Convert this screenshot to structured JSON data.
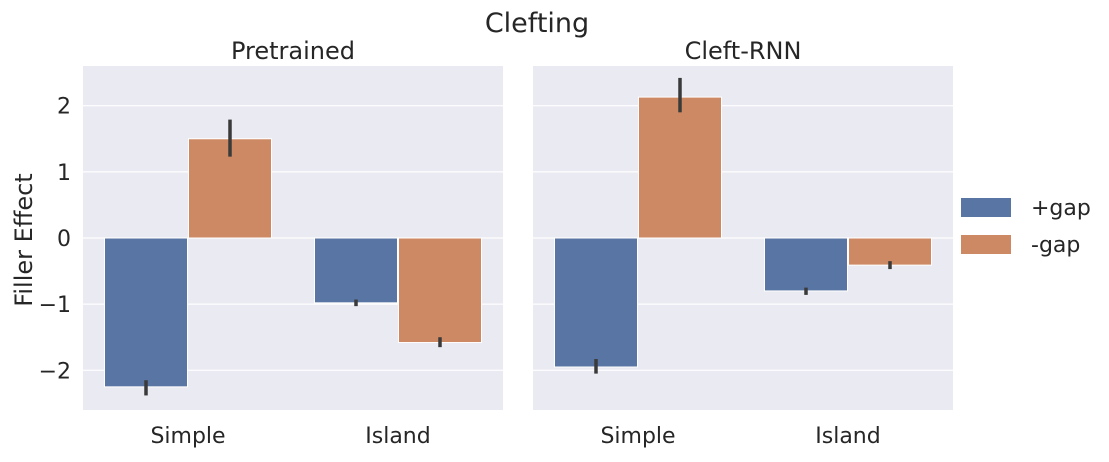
{
  "figure": {
    "suptitle": "Clefting",
    "ylabel": "Filler Effect",
    "legend_position": "right"
  },
  "colors": {
    "+gap": "#5875a4",
    "-gap": "#cc8963",
    "panel_background": "#eaeaf2",
    "grid": "#ffffff",
    "error_bar": "#3a3a3a"
  },
  "chart_data": [
    {
      "type": "bar",
      "title": "Pretrained",
      "xlabel": "",
      "ylabel": "Filler Effect",
      "categories": [
        "Simple",
        "Island"
      ],
      "ylim": [
        -2.6,
        2.6
      ],
      "yticks": [
        -2,
        -1,
        0,
        1,
        2
      ],
      "grid": true,
      "series": [
        {
          "name": "+gap",
          "values": [
            -2.25,
            -0.98
          ],
          "error_low": [
            -2.38,
            -1.03
          ],
          "error_high": [
            -2.15,
            -0.93
          ]
        },
        {
          "name": "-gap",
          "values": [
            1.5,
            -1.58
          ],
          "error_low": [
            1.23,
            -1.65
          ],
          "error_high": [
            1.79,
            -1.5
          ]
        }
      ]
    },
    {
      "type": "bar",
      "title": "Cleft-RNN",
      "xlabel": "",
      "ylabel": "",
      "categories": [
        "Simple",
        "Island"
      ],
      "ylim": [
        -2.6,
        2.6
      ],
      "yticks": [
        -2,
        -1,
        0,
        1,
        2
      ],
      "grid": true,
      "series": [
        {
          "name": "+gap",
          "values": [
            -1.95,
            -0.8
          ],
          "error_low": [
            -2.05,
            -0.86
          ],
          "error_high": [
            -1.83,
            -0.75
          ]
        },
        {
          "name": "-gap",
          "values": [
            2.13,
            -0.41
          ],
          "error_low": [
            1.9,
            -0.47
          ],
          "error_high": [
            2.42,
            -0.35
          ]
        }
      ]
    }
  ],
  "legend": {
    "entries": [
      {
        "label": "+gap",
        "color": "#5875a4"
      },
      {
        "label": "-gap",
        "color": "#cc8963"
      }
    ]
  }
}
